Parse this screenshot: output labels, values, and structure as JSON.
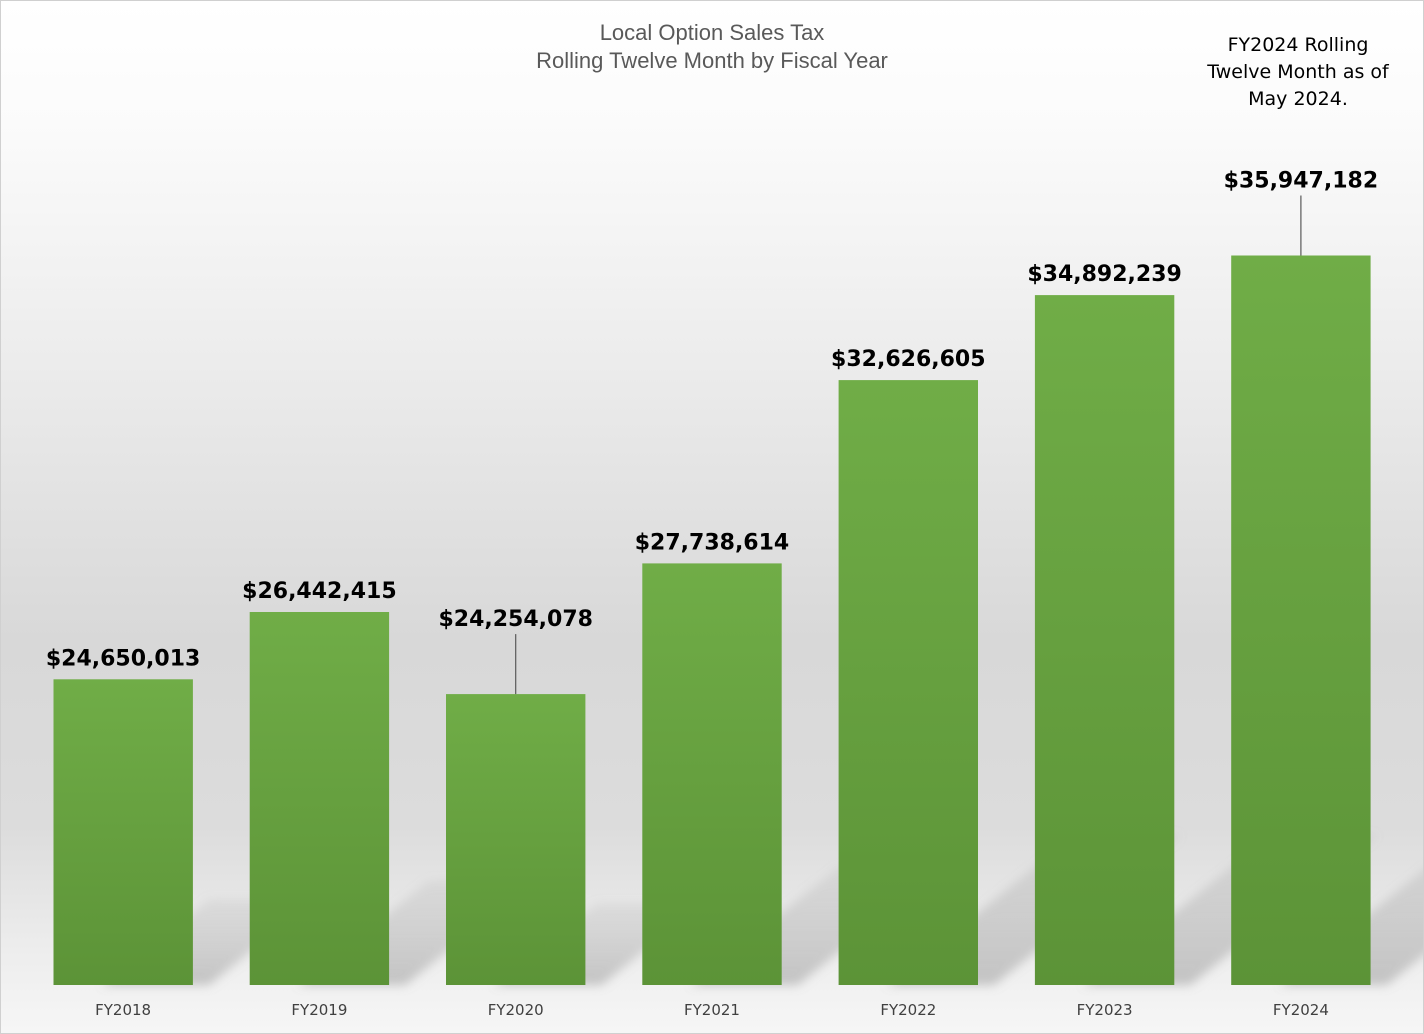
{
  "chart_data": {
    "type": "bar",
    "title": "Local Option Sales Tax",
    "subtitle": "Rolling Twelve Month by Fiscal Year",
    "annotation": [
      "FY2024 Rolling",
      "Twelve Month as of",
      "May 2024."
    ],
    "categories": [
      "FY2018",
      "FY2019",
      "FY2020",
      "FY2021",
      "FY2022",
      "FY2023",
      "FY2024"
    ],
    "values": [
      24650013,
      26442415,
      24254078,
      27738614,
      32626605,
      34892239,
      35947182
    ],
    "data_labels": [
      "$24,650,013",
      "$26,442,415",
      "$24,254,078",
      "$27,738,614",
      "$32,626,605",
      "$34,892,239",
      "$35,947,182"
    ],
    "xlabel": "",
    "ylabel": "",
    "ylim": [
      16500000,
      39000000
    ],
    "grid": false,
    "legend": "none",
    "colors": {
      "bar_top": "#70ad47",
      "bar_bottom": "#5c9337",
      "leader_line": "#595959"
    }
  }
}
